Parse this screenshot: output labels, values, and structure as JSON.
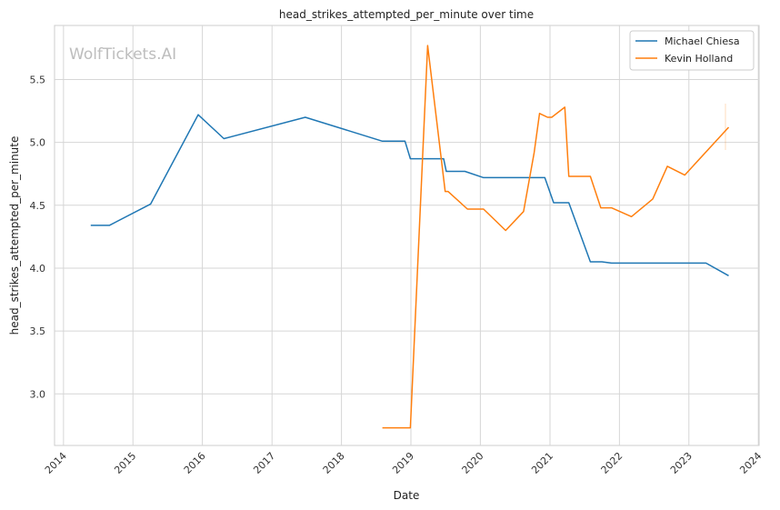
{
  "chart_data": {
    "type": "line",
    "title": "head_strikes_attempted_per_minute over time",
    "xlabel": "Date",
    "ylabel": "head_strikes_attempted_per_minute",
    "watermark": "WolfTickets.AI",
    "x_ticks": [
      "2014",
      "2015",
      "2016",
      "2017",
      "2018",
      "2019",
      "2020",
      "2021",
      "2022",
      "2023",
      "2024"
    ],
    "y_ticks": [
      "3.0",
      "3.5",
      "4.0",
      "4.5",
      "5.0",
      "5.5"
    ],
    "xlim": [
      "2013-11-15",
      "2024-01-05"
    ],
    "ylim": [
      2.59,
      5.93
    ],
    "grid": true,
    "legend_position": "top-right",
    "colors": {
      "Michael Chiesa": "#1f77b4",
      "Kevin Holland": "#ff7f0e",
      "grid": "#d6d6d6",
      "axes": "#cccccc"
    },
    "series": [
      {
        "name": "Michael Chiesa",
        "color": "#1f77b4",
        "points": [
          [
            "2014-05-24",
            4.34
          ],
          [
            "2014-08-30",
            4.34
          ],
          [
            "2015-04-04",
            4.51
          ],
          [
            "2015-12-10",
            5.22
          ],
          [
            "2016-04-23",
            5.03
          ],
          [
            "2017-06-25",
            5.2
          ],
          [
            "2018-08-04",
            5.01
          ],
          [
            "2018-12-01",
            5.01
          ],
          [
            "2018-12-29",
            4.87
          ],
          [
            "2019-06-22",
            4.87
          ],
          [
            "2019-07-06",
            4.77
          ],
          [
            "2019-10-12",
            4.77
          ],
          [
            "2020-01-18",
            4.72
          ],
          [
            "2020-12-05",
            4.72
          ],
          [
            "2021-01-20",
            4.52
          ],
          [
            "2021-04-10",
            4.52
          ],
          [
            "2021-08-01",
            4.05
          ],
          [
            "2021-10-01",
            4.05
          ],
          [
            "2021-11-20",
            4.04
          ],
          [
            "2023-04-01",
            4.04
          ],
          [
            "2023-07-29",
            3.94
          ]
        ]
      },
      {
        "name": "Kevin Holland",
        "color": "#ff7f0e",
        "points": [
          [
            "2018-08-04",
            2.73
          ],
          [
            "2018-12-29",
            2.73
          ],
          [
            "2019-03-30",
            5.77
          ],
          [
            "2019-06-30",
            4.61
          ],
          [
            "2019-07-15",
            4.61
          ],
          [
            "2019-10-25",
            4.47
          ],
          [
            "2020-01-01",
            4.47
          ],
          [
            "2020-01-18",
            4.47
          ],
          [
            "2020-05-13",
            4.3
          ],
          [
            "2020-08-15",
            4.45
          ],
          [
            "2020-10-10",
            4.92
          ],
          [
            "2020-11-07",
            5.23
          ],
          [
            "2020-12-19",
            5.2
          ],
          [
            "2021-01-10",
            5.2
          ],
          [
            "2021-03-20",
            5.28
          ],
          [
            "2021-04-10",
            4.73
          ],
          [
            "2021-08-01",
            4.73
          ],
          [
            "2021-09-25",
            4.48
          ],
          [
            "2021-11-20",
            4.48
          ],
          [
            "2022-03-05",
            4.41
          ],
          [
            "2022-06-25",
            4.55
          ],
          [
            "2022-09-10",
            4.81
          ],
          [
            "2022-12-10",
            4.74
          ],
          [
            "2023-07-29",
            5.12
          ]
        ]
      }
    ]
  }
}
